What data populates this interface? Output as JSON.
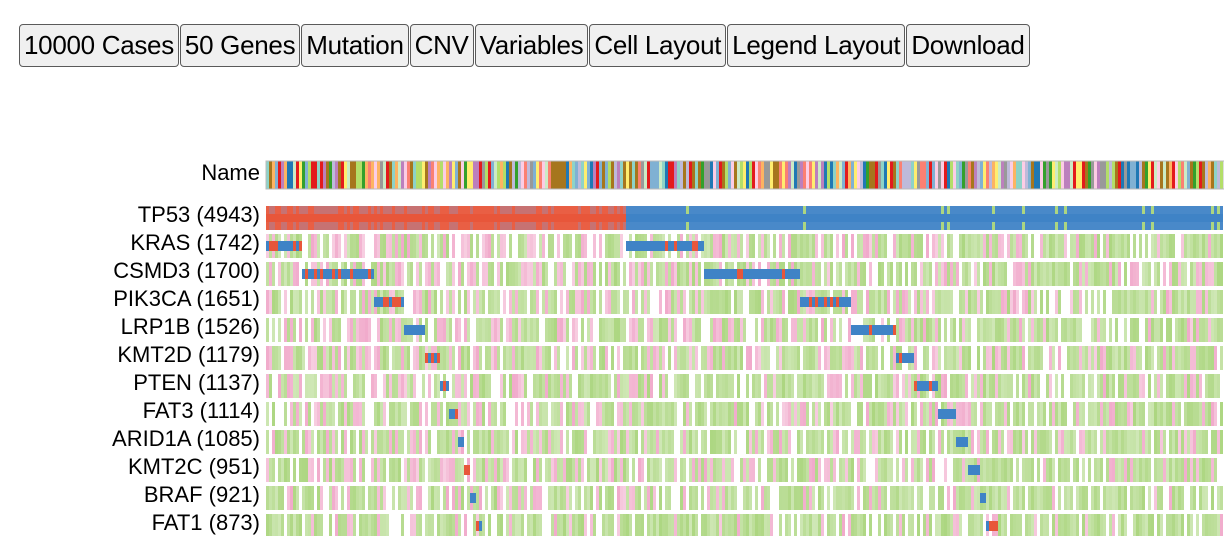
{
  "toolbar": {
    "buttons": [
      {
        "id": "cases",
        "label": "10000 Cases"
      },
      {
        "id": "genes",
        "label": "50 Genes"
      },
      {
        "id": "mutation",
        "label": "Mutation"
      },
      {
        "id": "cnv",
        "label": "CNV"
      },
      {
        "id": "variables",
        "label": "Variables"
      },
      {
        "id": "cell-layout",
        "label": "Cell Layout"
      },
      {
        "id": "legend-layout",
        "label": "Legend Layout"
      },
      {
        "id": "download",
        "label": "Download"
      }
    ]
  },
  "name_track": {
    "label": "Name"
  },
  "genes": [
    {
      "name": "TP53",
      "count": 4943,
      "label": "TP53 (4943)"
    },
    {
      "name": "KRAS",
      "count": 1742,
      "label": "KRAS (1742)"
    },
    {
      "name": "CSMD3",
      "count": 1700,
      "label": "CSMD3 (1700)"
    },
    {
      "name": "PIK3CA",
      "count": 1651,
      "label": "PIK3CA (1651)"
    },
    {
      "name": "LRP1B",
      "count": 1526,
      "label": "LRP1B (1526)"
    },
    {
      "name": "KMT2D",
      "count": 1179,
      "label": "KMT2D (1179)"
    },
    {
      "name": "PTEN",
      "count": 1137,
      "label": "PTEN (1137)"
    },
    {
      "name": "FAT3",
      "count": 1114,
      "label": "FAT3 (1114)"
    },
    {
      "name": "ARID1A",
      "count": 1085,
      "label": "ARID1A (1085)"
    },
    {
      "name": "KMT2C",
      "count": 951,
      "label": "KMT2C (951)"
    },
    {
      "name": "BRAF",
      "count": 921,
      "label": "BRAF (921)"
    },
    {
      "name": "FAT1",
      "count": 873,
      "label": "FAT1 (873)"
    }
  ],
  "colors": {
    "mutation_missense": "#3f83c6",
    "mutation_truncating": "#e8563a",
    "cnv_gain": "#f0a5c8",
    "cnv_loss": "#a8d47a",
    "neutral": "#ffffff"
  }
}
